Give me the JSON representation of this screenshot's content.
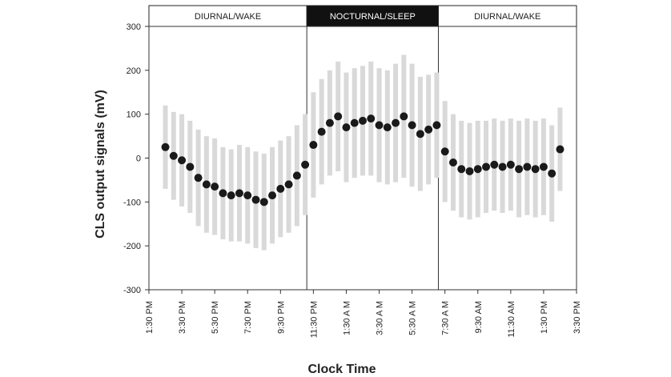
{
  "chart_data": {
    "type": "errorbar-scatter",
    "y_label": "CLS output signals (mV)",
    "x_label": "Clock Time",
    "xlim": [
      0,
      26
    ],
    "xticks": [
      {
        "value": 0,
        "label": "1:30 PM"
      },
      {
        "value": 2,
        "label": "3:30 PM"
      },
      {
        "value": 4,
        "label": "5:30 PM"
      },
      {
        "value": 6,
        "label": "7:30 PM"
      },
      {
        "value": 8,
        "label": "9:30 PM"
      },
      {
        "value": 10,
        "label": "11:30 PM"
      },
      {
        "value": 12,
        "label": "1:30 A M"
      },
      {
        "value": 14,
        "label": "3:30 A M"
      },
      {
        "value": 16,
        "label": "5:30 A M"
      },
      {
        "value": 18,
        "label": "7:30 A M"
      },
      {
        "value": 20,
        "label": "9:30 AM"
      },
      {
        "value": 22,
        "label": "11:30 AM"
      },
      {
        "value": 24,
        "label": "1:30 PM"
      },
      {
        "value": 26,
        "label": "3:30 PM"
      }
    ],
    "ylim": [
      -300,
      300
    ],
    "yticks": [
      -300,
      -200,
      -100,
      0,
      100,
      200,
      300
    ],
    "phases": [
      {
        "label": "DIURNAL/WAKE",
        "start": 0,
        "end": 9.6,
        "color": "#ffffff",
        "text_color": "#222222"
      },
      {
        "label": "NOCTURNAL/SLEEP",
        "start": 9.6,
        "end": 17.6,
        "color": "#111111",
        "text_color": "#ffffff"
      },
      {
        "label": "DIURNAL/WAKE",
        "start": 17.6,
        "end": 26,
        "color": "#ffffff",
        "text_color": "#222222"
      }
    ],
    "point_color": "#1a1a1a",
    "error_color": "#d9d9d9",
    "x": [
      1,
      1.5,
      2,
      2.5,
      3,
      3.5,
      4,
      4.5,
      5,
      5.5,
      6,
      6.5,
      7,
      7.5,
      8,
      8.5,
      9,
      9.5,
      10,
      10.5,
      11,
      11.5,
      12,
      12.5,
      13,
      13.5,
      14,
      14.5,
      15,
      15.5,
      16,
      16.5,
      17,
      17.5,
      18,
      18.5,
      19,
      19.5,
      20,
      20.5,
      21,
      21.5,
      22,
      22.5,
      23,
      23.5,
      24,
      24.5,
      25
    ],
    "values": [
      25,
      5,
      -5,
      -20,
      -45,
      -60,
      -65,
      -80,
      -85,
      -80,
      -85,
      -95,
      -100,
      -85,
      -70,
      -60,
      -40,
      -15,
      30,
      60,
      80,
      95,
      70,
      80,
      85,
      90,
      75,
      70,
      80,
      95,
      75,
      55,
      65,
      75,
      15,
      -10,
      -25,
      -30,
      -25,
      -20,
      -15,
      -20,
      -15,
      -25,
      -20,
      -25,
      -20,
      -35,
      20
    ],
    "errors": [
      95,
      100,
      105,
      105,
      110,
      110,
      110,
      105,
      105,
      110,
      110,
      110,
      110,
      110,
      110,
      110,
      115,
      115,
      120,
      120,
      120,
      125,
      125,
      125,
      125,
      130,
      130,
      130,
      135,
      140,
      140,
      130,
      125,
      120,
      115,
      110,
      110,
      110,
      110,
      105,
      105,
      105,
      105,
      110,
      110,
      110,
      110,
      110,
      95
    ]
  }
}
